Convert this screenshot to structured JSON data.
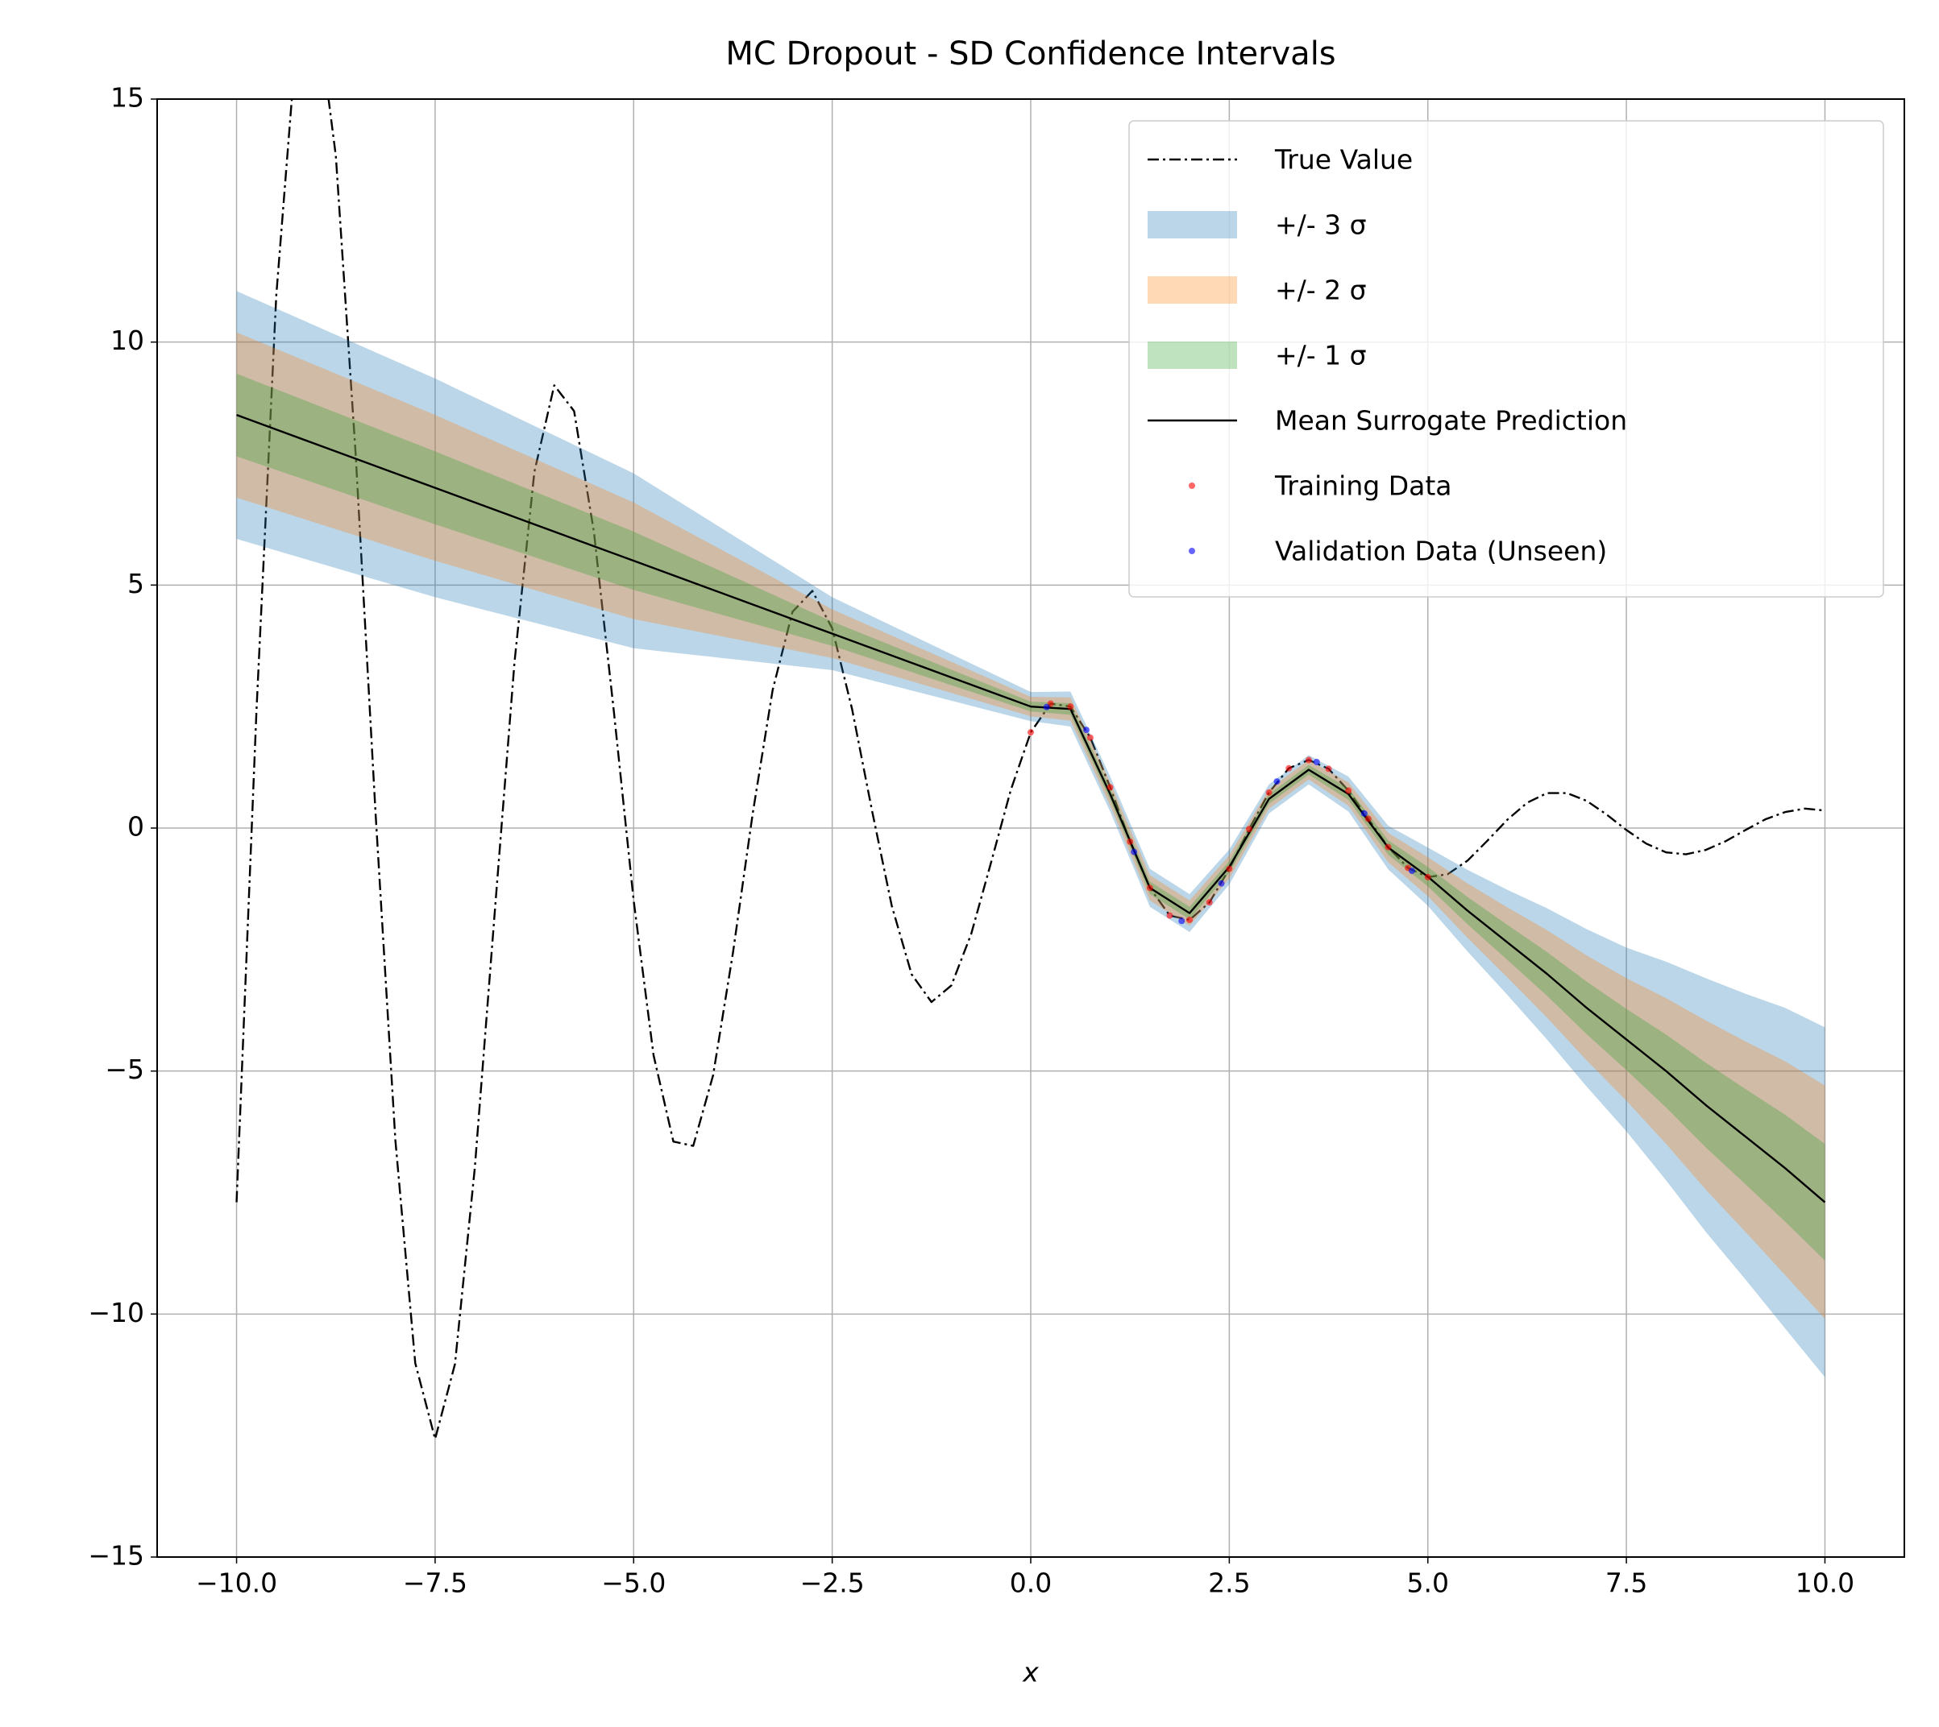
{
  "chart_data": {
    "type": "line",
    "title": "MC Dropout - SD Confidence Intervals",
    "xlabel": "x",
    "xlim": [
      -11,
      11
    ],
    "ylim": [
      -15,
      15
    ],
    "xticks": [
      {
        "value": -10,
        "label": "−10.0"
      },
      {
        "value": -7.5,
        "label": "−7.5"
      },
      {
        "value": -5,
        "label": "−5.0"
      },
      {
        "value": -2.5,
        "label": "−2.5"
      },
      {
        "value": 0,
        "label": "0.0"
      },
      2.5,
      {
        "value": 5,
        "label": "5.0"
      },
      7.5,
      {
        "value": 10,
        "label": "10.0"
      }
    ],
    "yticks": [
      {
        "value": -15,
        "label": "−15"
      },
      {
        "value": -10,
        "label": "−10"
      },
      {
        "value": -5,
        "label": "−5"
      },
      0,
      5,
      10,
      15
    ],
    "grid": true,
    "legend": "upper right",
    "series": [
      {
        "name": "True Value",
        "kind": "line",
        "style": "dashdot",
        "color": "#000000",
        "x": [
          -10,
          -9.75,
          -9.5,
          -9.25,
          -9,
          -8.75,
          -8.5,
          -8.25,
          -8,
          -7.75,
          -7.5,
          -7.25,
          -7,
          -6.75,
          -6.5,
          -6.25,
          -6,
          -5.75,
          -5.5,
          -5.25,
          -5,
          -4.75,
          -4.5,
          -4.25,
          -4,
          -3.75,
          -3.5,
          -3.25,
          -3,
          -2.75,
          -2.5,
          -2.25,
          -2,
          -1.75,
          -1.5,
          -1.25,
          -1,
          -0.75,
          -0.5,
          -0.25,
          0,
          0.25,
          0.5,
          0.75,
          1,
          1.25,
          1.5,
          1.75,
          2,
          2.25,
          2.5,
          2.75,
          3,
          3.25,
          3.5,
          3.75,
          4,
          4.25,
          4.5,
          4.75,
          5,
          5.25,
          5.5,
          5.75,
          6,
          6.25,
          6.5,
          6.75,
          7,
          7.25,
          7.5,
          7.75,
          8,
          8.25,
          8.5,
          8.75,
          9,
          9.25,
          9.5,
          9.75,
          10
        ],
        "values": [
          -7.7,
          2.39,
          10.96,
          16.12,
          17.02,
          13.83,
          7.68,
          0.31,
          -6.43,
          -11.01,
          -12.57,
          -11.03,
          -6.99,
          -1.75,
          3.42,
          7.33,
          9.11,
          8.58,
          6.09,
          2.41,
          -1.49,
          -4.67,
          -6.45,
          -6.54,
          -5.09,
          -2.57,
          0.31,
          2.84,
          4.45,
          4.88,
          4.11,
          2.45,
          0.37,
          -1.6,
          -3.01,
          -3.58,
          -3.24,
          -2.18,
          -0.71,
          0.79,
          1.97,
          2.56,
          2.5,
          1.86,
          0.84,
          -0.28,
          -1.23,
          -1.8,
          -1.89,
          -1.53,
          -0.84,
          -0.02,
          0.73,
          1.23,
          1.4,
          1.22,
          0.77,
          0.19,
          -0.39,
          -0.82,
          -1.01,
          -0.95,
          -0.67,
          -0.26,
          0.17,
          0.52,
          0.72,
          0.72,
          0.56,
          0.28,
          -0.04,
          -0.32,
          -0.5,
          -0.54,
          -0.45,
          -0.27,
          -0.04,
          0.18,
          0.33,
          0.4,
          0.36
        ]
      },
      {
        "name": "+/- 3 σ",
        "kind": "band",
        "sigma": 3,
        "color": "#1f77b4",
        "opacity": 0.3
      },
      {
        "name": "+/- 2 σ",
        "kind": "band",
        "sigma": 2,
        "color": "#ff7f0e",
        "opacity": 0.3
      },
      {
        "name": "+/- 1 σ",
        "kind": "band",
        "sigma": 1,
        "color": "#2ca02c",
        "opacity": 0.3
      },
      {
        "name": "Mean Surrogate Prediction",
        "kind": "line",
        "style": "solid",
        "color": "#000000",
        "x": [
          -10,
          -9.5,
          -9,
          -8.5,
          -8,
          -7.5,
          -7,
          -6.5,
          -6,
          -5.5,
          -5,
          -4.5,
          -4,
          -3.5,
          -3,
          -2.5,
          -2,
          -1.5,
          -1,
          -0.5,
          0,
          0.5,
          1,
          1.5,
          2,
          2.5,
          3,
          3.5,
          4,
          4.5,
          5,
          5.5,
          6,
          6.5,
          7,
          7.5,
          8,
          8.5,
          9,
          9.5,
          10
        ],
        "values": [
          8.5,
          8.2,
          7.9,
          7.6,
          7.3,
          7.0,
          6.7,
          6.4,
          6.1,
          5.8,
          5.5,
          5.2,
          4.9,
          4.6,
          4.3,
          4.0,
          3.7,
          3.4,
          3.1,
          2.8,
          2.5,
          2.45,
          0.7,
          -1.23,
          -1.75,
          -0.8,
          0.6,
          1.2,
          0.7,
          -0.4,
          -1.0,
          -1.7,
          -2.35,
          -3.0,
          -3.7,
          -4.35,
          -5.0,
          -5.7,
          -6.35,
          -7.0,
          -7.7
        ],
        "std": [
          0.85,
          0.83,
          0.81,
          0.79,
          0.77,
          0.75,
          0.72,
          0.69,
          0.66,
          0.63,
          0.6,
          0.53,
          0.46,
          0.39,
          0.32,
          0.25,
          0.22,
          0.19,
          0.16,
          0.13,
          0.1,
          0.12,
          0.12,
          0.13,
          0.13,
          0.12,
          0.1,
          0.1,
          0.12,
          0.15,
          0.2,
          0.28,
          0.36,
          0.45,
          0.54,
          0.63,
          0.75,
          0.87,
          0.98,
          1.1,
          1.2
        ]
      },
      {
        "name": "Training Data",
        "kind": "scatter",
        "color": "#ff0000",
        "x": [
          0,
          0.25,
          0.5,
          0.75,
          1,
          1.25,
          1.5,
          1.75,
          2,
          2.25,
          2.5,
          2.75,
          3,
          3.25,
          3.5,
          3.75,
          4,
          4.25,
          4.5,
          4.75,
          5
        ],
        "values": [
          1.97,
          2.56,
          2.5,
          1.86,
          0.84,
          -0.28,
          -1.23,
          -1.8,
          -1.89,
          -1.53,
          -0.84,
          -0.02,
          0.73,
          1.23,
          1.4,
          1.22,
          0.77,
          0.19,
          -0.39,
          -0.82,
          -1.01
        ]
      },
      {
        "name": "Validation Data (Unseen)",
        "kind": "scatter",
        "color": "#0000ff",
        "x": [
          0.2,
          0.7,
          1.3,
          1.9,
          2.4,
          3.1,
          3.6,
          4.2,
          4.8
        ],
        "values": [
          2.49,
          2.02,
          -0.49,
          -1.91,
          -1.14,
          0.96,
          1.36,
          0.3,
          -0.88
        ]
      }
    ]
  }
}
